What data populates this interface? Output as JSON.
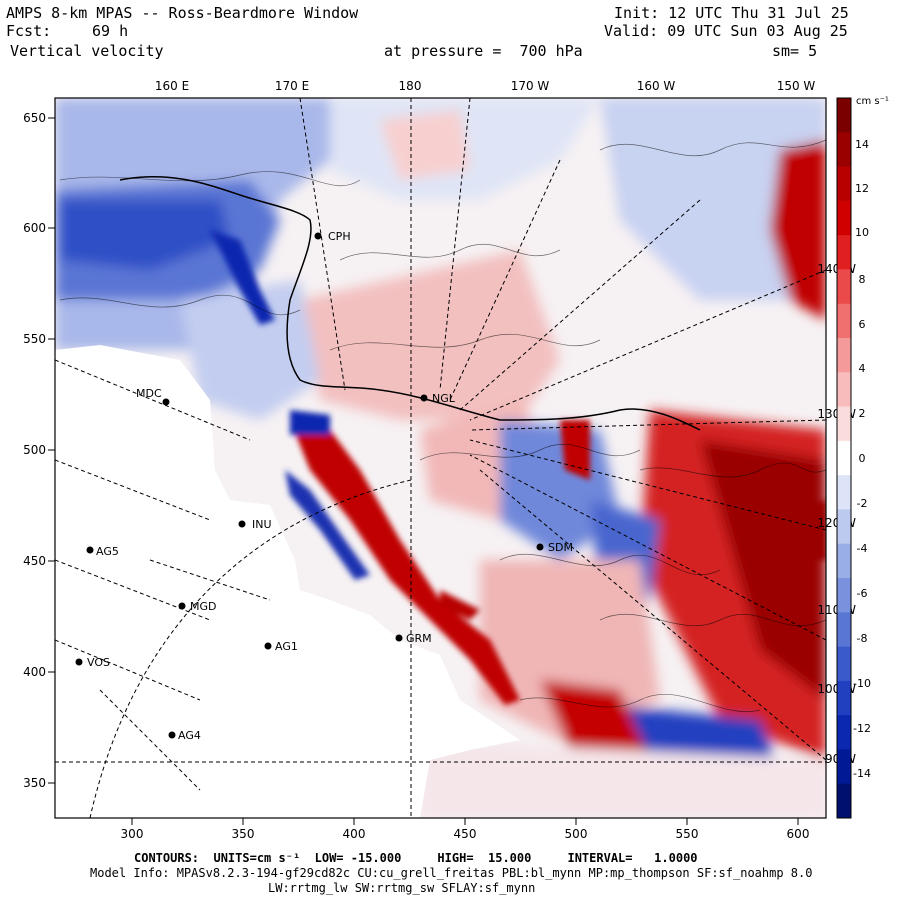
{
  "header": {
    "title": "AMPS 8-km MPAS -- Ross-Beardmore Window",
    "init": "Init: 12 UTC Thu 31 Jul 25",
    "fcst_label": "Fcst:",
    "fcst_value": "69 h",
    "valid": "Valid: 09 UTC Sun 03 Aug 25",
    "field": "Vertical velocity",
    "level": "at pressure =  700 hPa",
    "smooth": "sm= 5"
  },
  "axes": {
    "top_labels": [
      "160 E",
      "170 E",
      "180",
      "170 W",
      "160 W",
      "150 W"
    ],
    "x_ticks": [
      "300",
      "350",
      "400",
      "450",
      "500",
      "550",
      "600"
    ],
    "y_ticks": [
      "650",
      "600",
      "550",
      "500",
      "450",
      "400",
      "350"
    ],
    "right_meridians": [
      "140 W",
      "130 W",
      "120 W",
      "110 W",
      "100 W",
      "90 W"
    ]
  },
  "stations": [
    {
      "name": "CPH"
    },
    {
      "name": "MDC"
    },
    {
      "name": "NGL"
    },
    {
      "name": "AG5"
    },
    {
      "name": "MGD"
    },
    {
      "name": "VOS"
    },
    {
      "name": "AG1"
    },
    {
      "name": "AG4"
    },
    {
      "name": "GRM"
    },
    {
      "name": "SDM"
    },
    {
      "name": "INU"
    }
  ],
  "colorbar": {
    "unit": "cm s⁻¹",
    "labels": [
      "14",
      "12",
      "10",
      "8",
      "6",
      "4",
      "2",
      "0",
      "-2",
      "-4",
      "-6",
      "-8",
      "-10",
      "-12",
      "-14"
    ],
    "colors_top_to_bottom": [
      "#7a0000",
      "#9a0000",
      "#b80000",
      "#d00000",
      "#e02020",
      "#ea4a4a",
      "#f07070",
      "#f59a9a",
      "#f8bcbc",
      "#fbdcdc",
      "#ffffff",
      "#dde4f7",
      "#bccaef",
      "#9aaee6",
      "#7a92dd",
      "#5a76d4",
      "#3a5acb",
      "#2040c0",
      "#0a28b0",
      "#001a96",
      "#00106e"
    ]
  },
  "footer": {
    "contours": "CONTOURS:  UNITS=cm s⁻¹  LOW= -15.000     HIGH=  15.000     INTERVAL=   1.0000",
    "model_info": "Model Info: MPASv8.2.3-194-gf29cd82c CU:cu_grell_freitas PBL:bl_mynn MP:mp_thompson SF:sf_noahmp 8.0",
    "physics": "LW:rrtmg_lw SW:rrtmg_sw SFLAY:sf_mynn"
  }
}
